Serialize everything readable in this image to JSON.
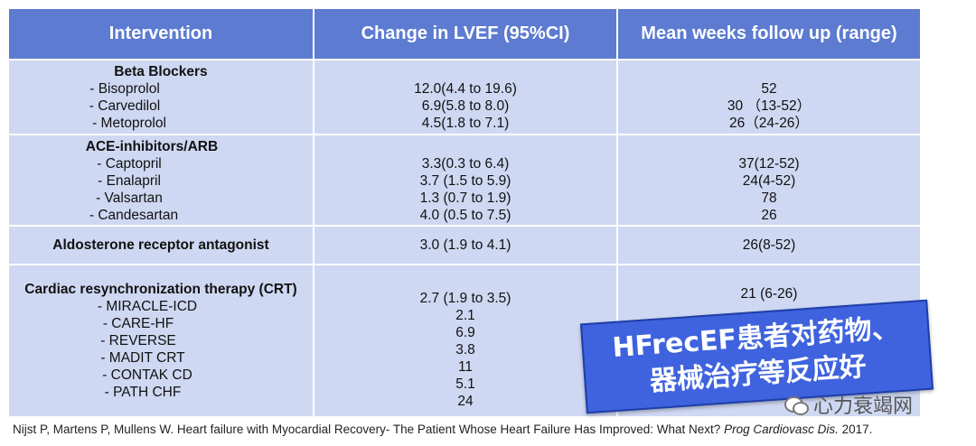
{
  "table": {
    "headers": [
      "Intervention",
      "Change in LVEF (95%CI)",
      "Mean weeks follow up (range)"
    ],
    "groups": [
      {
        "title": "Beta Blockers",
        "items": [
          "-    Bisoprolol",
          "-    Carvedilol",
          "-    Metoprolol"
        ],
        "lvef": [
          "12.0(4.4 to 19.6)",
          "6.9(5.8 to 8.0)",
          "4.5(1.8 to 7.1)"
        ],
        "followup": [
          "52",
          "30 （13-52）",
          "26（24-26）"
        ]
      },
      {
        "title": "ACE-inhibitors/ARB",
        "items": [
          "-    Captopril",
          "-    Enalapril",
          "-    Valsartan",
          "-   Candesartan"
        ],
        "lvef": [
          "3.3(0.3 to 6.4)",
          "3.7 (1.5 to 5.9)",
          "1.3 (0.7 to 1.9)",
          "4.0 (0.5 to 7.5)"
        ],
        "followup": [
          "37(12-52)",
          "24(4-52)",
          "78",
          "26"
        ]
      },
      {
        "title": "Aldosterone receptor antagonist",
        "items": [],
        "lvef": [
          "3.0 (1.9 to 4.1)"
        ],
        "followup": [
          "26(8-52)"
        ]
      },
      {
        "title": "Cardiac resynchronization therapy (CRT)",
        "items": [
          "- MIRACLE-ICD",
          "- CARE-HF",
          "- REVERSE",
          "- MADIT CRT",
          "- CONTAK CD",
          "- PATH CHF"
        ],
        "lvef": [
          "2.7 (1.9 to 3.5)",
          "2.1",
          "6.9",
          "3.8",
          "11",
          "5.1",
          "24"
        ],
        "followup": [
          "21 (6-26)"
        ]
      }
    ]
  },
  "citation": {
    "text": "Nijst P, Martens P, Mullens W. Heart failure with Myocardial Recovery- The Patient Whose Heart Failure Has Improved: What Next?",
    "journal": "Prog Cardiovasc Dis.",
    "year": "2017."
  },
  "overlay": {
    "line1": "HFrecEF患者对药物、",
    "line2": "器械治疗等反应好"
  },
  "watermark": {
    "icon": "wechat-icon",
    "text": "心力衰竭网"
  }
}
